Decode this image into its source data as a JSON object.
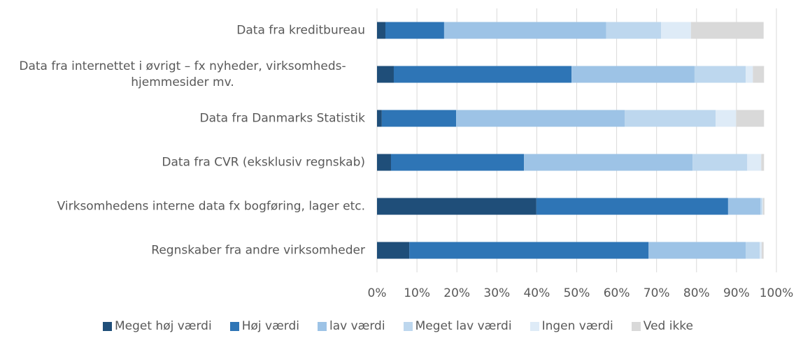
{
  "chart_data": {
    "type": "stacked_barh",
    "categories": [
      "Data fra kreditbureau",
      "Data fra internettet i øvrigt – fx nyheder, virksomheds-hjemmesider mv.",
      "Data fra Danmarks Statistik",
      "Data fra CVR (eksklusiv regnskab)",
      "Virksomhedens interne data fx bogføring, lager etc.",
      "Regnskaber fra andre virksomheder"
    ],
    "series": [
      {
        "name": "Meget høj værdi",
        "color": "#1f4e79",
        "values": [
          2.1,
          4.2,
          1.2,
          3.5,
          39.9,
          8.1
        ]
      },
      {
        "name": "Høj værdi",
        "color": "#2e75b6",
        "values": [
          14.7,
          44.5,
          18.6,
          33.3,
          48.0,
          59.9
        ]
      },
      {
        "name": "lav værdi",
        "color": "#9dc3e6",
        "values": [
          40.6,
          30.8,
          42.2,
          42.2,
          8.1,
          24.3
        ]
      },
      {
        "name": "Meget lav værdi",
        "color": "#bdd7ee",
        "values": [
          13.7,
          12.8,
          22.8,
          13.7,
          0.4,
          3.5
        ]
      },
      {
        "name": "Ingen værdi",
        "color": "#deebf7",
        "values": [
          7.5,
          1.8,
          5.1,
          3.5,
          0.2,
          0.5
        ]
      },
      {
        "name": "Ved ikke",
        "color": "#d9d9d9",
        "values": [
          18.2,
          2.8,
          7.0,
          0.7,
          0.4,
          0.5
        ]
      }
    ],
    "xlim": [
      0,
      100
    ],
    "xticks": [
      {
        "value": 0,
        "label": "0%"
      },
      {
        "value": 10,
        "label": "10%"
      },
      {
        "value": 20,
        "label": "20%"
      },
      {
        "value": 30,
        "label": "30%"
      },
      {
        "value": 40,
        "label": "40%"
      },
      {
        "value": 50,
        "label": "50%"
      },
      {
        "value": 60,
        "label": "60%"
      },
      {
        "value": 70,
        "label": "70%"
      },
      {
        "value": 80,
        "label": "80%"
      },
      {
        "value": 90,
        "label": "90%"
      },
      {
        "value": 100,
        "label": "100%"
      }
    ],
    "grid": true,
    "legend": "bottom"
  }
}
